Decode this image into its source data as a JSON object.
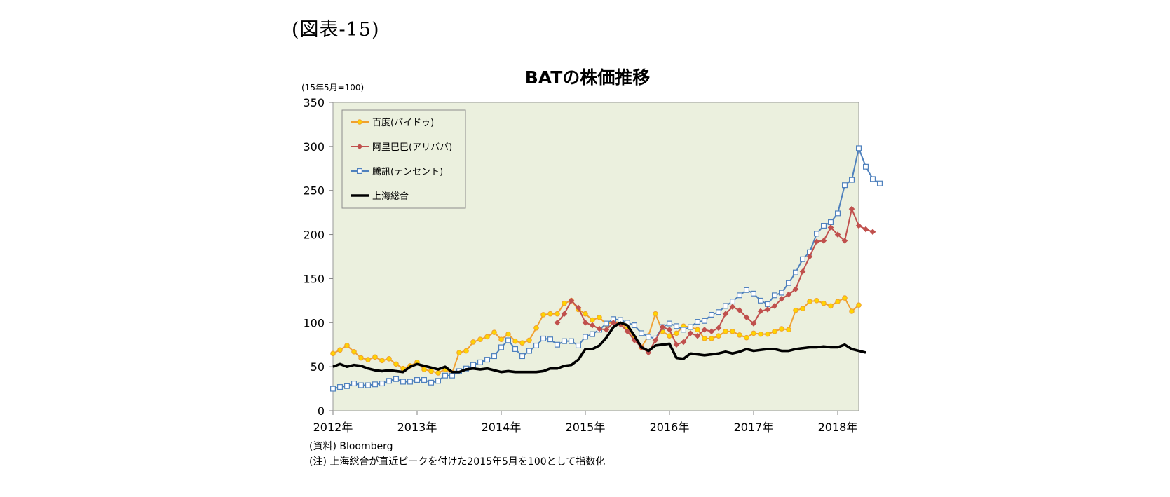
{
  "figure_label": "(図表-15)",
  "source": "(資料) Bloomberg",
  "note": "(注) 上海総合が直近ピークを付けた2015年5月を100として指数化",
  "colors": {
    "plot_bg": "#ebf0de",
    "baidu": "#f0a030",
    "baidu_marker": "#ffd400",
    "alibaba": "#c0504d",
    "tencent": "#4f81bd",
    "shanghai": "#000000"
  },
  "chart_data": {
    "type": "line",
    "title": "BATの株価推移",
    "ylabel": "(15年5月=100)",
    "xlabel": "",
    "ylim": [
      0,
      350
    ],
    "yticks": [
      0,
      50,
      100,
      150,
      200,
      250,
      300,
      350
    ],
    "xlim": [
      0,
      75
    ],
    "xticks": [
      {
        "pos": 0,
        "label": "2012年"
      },
      {
        "pos": 12,
        "label": "2013年"
      },
      {
        "pos": 24,
        "label": "2014年"
      },
      {
        "pos": 36,
        "label": "2015年"
      },
      {
        "pos": 48,
        "label": "2016年"
      },
      {
        "pos": 60,
        "label": "2017年"
      },
      {
        "pos": 72,
        "label": "2018年"
      }
    ],
    "legend_position": "top-left",
    "grid": false,
    "series": [
      {
        "name": "百度(バイドゥ)",
        "key": "baidu",
        "marker": "circle",
        "start": 0,
        "values": [
          65,
          69,
          74,
          67,
          60,
          58,
          61,
          57,
          59,
          53,
          48,
          51,
          55,
          47,
          45,
          43,
          47,
          43,
          66,
          68,
          78,
          81,
          84,
          89,
          81,
          87,
          79,
          77,
          80,
          94,
          109,
          110,
          110,
          122,
          125,
          115,
          110,
          103,
          106,
          98,
          101,
          100,
          93,
          83,
          72,
          85,
          110,
          90,
          85,
          88,
          96,
          95,
          92,
          82,
          82,
          85,
          90,
          90,
          86,
          83,
          88,
          87,
          87,
          90,
          93,
          92,
          114,
          116,
          124,
          125,
          122,
          119,
          124,
          128,
          113,
          120
        ]
      },
      {
        "name": "阿里巴巴(アリババ)",
        "key": "alibaba",
        "marker": "diamond",
        "start": 32,
        "values": [
          100,
          110,
          125,
          117,
          100,
          97,
          93,
          92,
          100,
          98,
          90,
          80,
          72,
          66,
          80,
          95,
          92,
          75,
          78,
          88,
          85,
          92,
          90,
          94,
          110,
          118,
          114,
          106,
          99,
          113,
          115,
          119,
          127,
          132,
          138,
          158,
          175,
          192,
          193,
          208,
          200,
          193,
          229,
          210,
          206,
          203
        ]
      },
      {
        "name": "騰訊(テンセント)",
        "key": "tencent",
        "marker": "square",
        "start": 0,
        "values": [
          25,
          27,
          28,
          31,
          29,
          29,
          30,
          31,
          34,
          36,
          33,
          33,
          35,
          35,
          32,
          34,
          40,
          40,
          45,
          48,
          52,
          55,
          58,
          62,
          72,
          80,
          70,
          62,
          68,
          74,
          82,
          81,
          75,
          79,
          79,
          74,
          84,
          87,
          92,
          99,
          104,
          103,
          100,
          97,
          88,
          84,
          82,
          95,
          99,
          96,
          92,
          95,
          101,
          102,
          109,
          112,
          119,
          124,
          131,
          137,
          133,
          125,
          121,
          131,
          134,
          145,
          157,
          172,
          180,
          201,
          210,
          214,
          224,
          256,
          262,
          298,
          277,
          263,
          258
        ]
      },
      {
        "name": "上海総合",
        "key": "shanghai",
        "marker": "none",
        "start": 0,
        "values": [
          50,
          53,
          50,
          52,
          51,
          48,
          46,
          45,
          46,
          45,
          44,
          50,
          53,
          51,
          49,
          47,
          50,
          44,
          44,
          47,
          48,
          47,
          48,
          46,
          44,
          45,
          44,
          44,
          44,
          44,
          45,
          48,
          48,
          51,
          52,
          58,
          70,
          70,
          74,
          83,
          95,
          100,
          97,
          85,
          72,
          68,
          74,
          75,
          76,
          60,
          59,
          65,
          64,
          63,
          64,
          65,
          67,
          65,
          67,
          70,
          68,
          69,
          70,
          70,
          68,
          68,
          70,
          71,
          72,
          72,
          73,
          72,
          72,
          75,
          70,
          68,
          66
        ]
      }
    ]
  }
}
